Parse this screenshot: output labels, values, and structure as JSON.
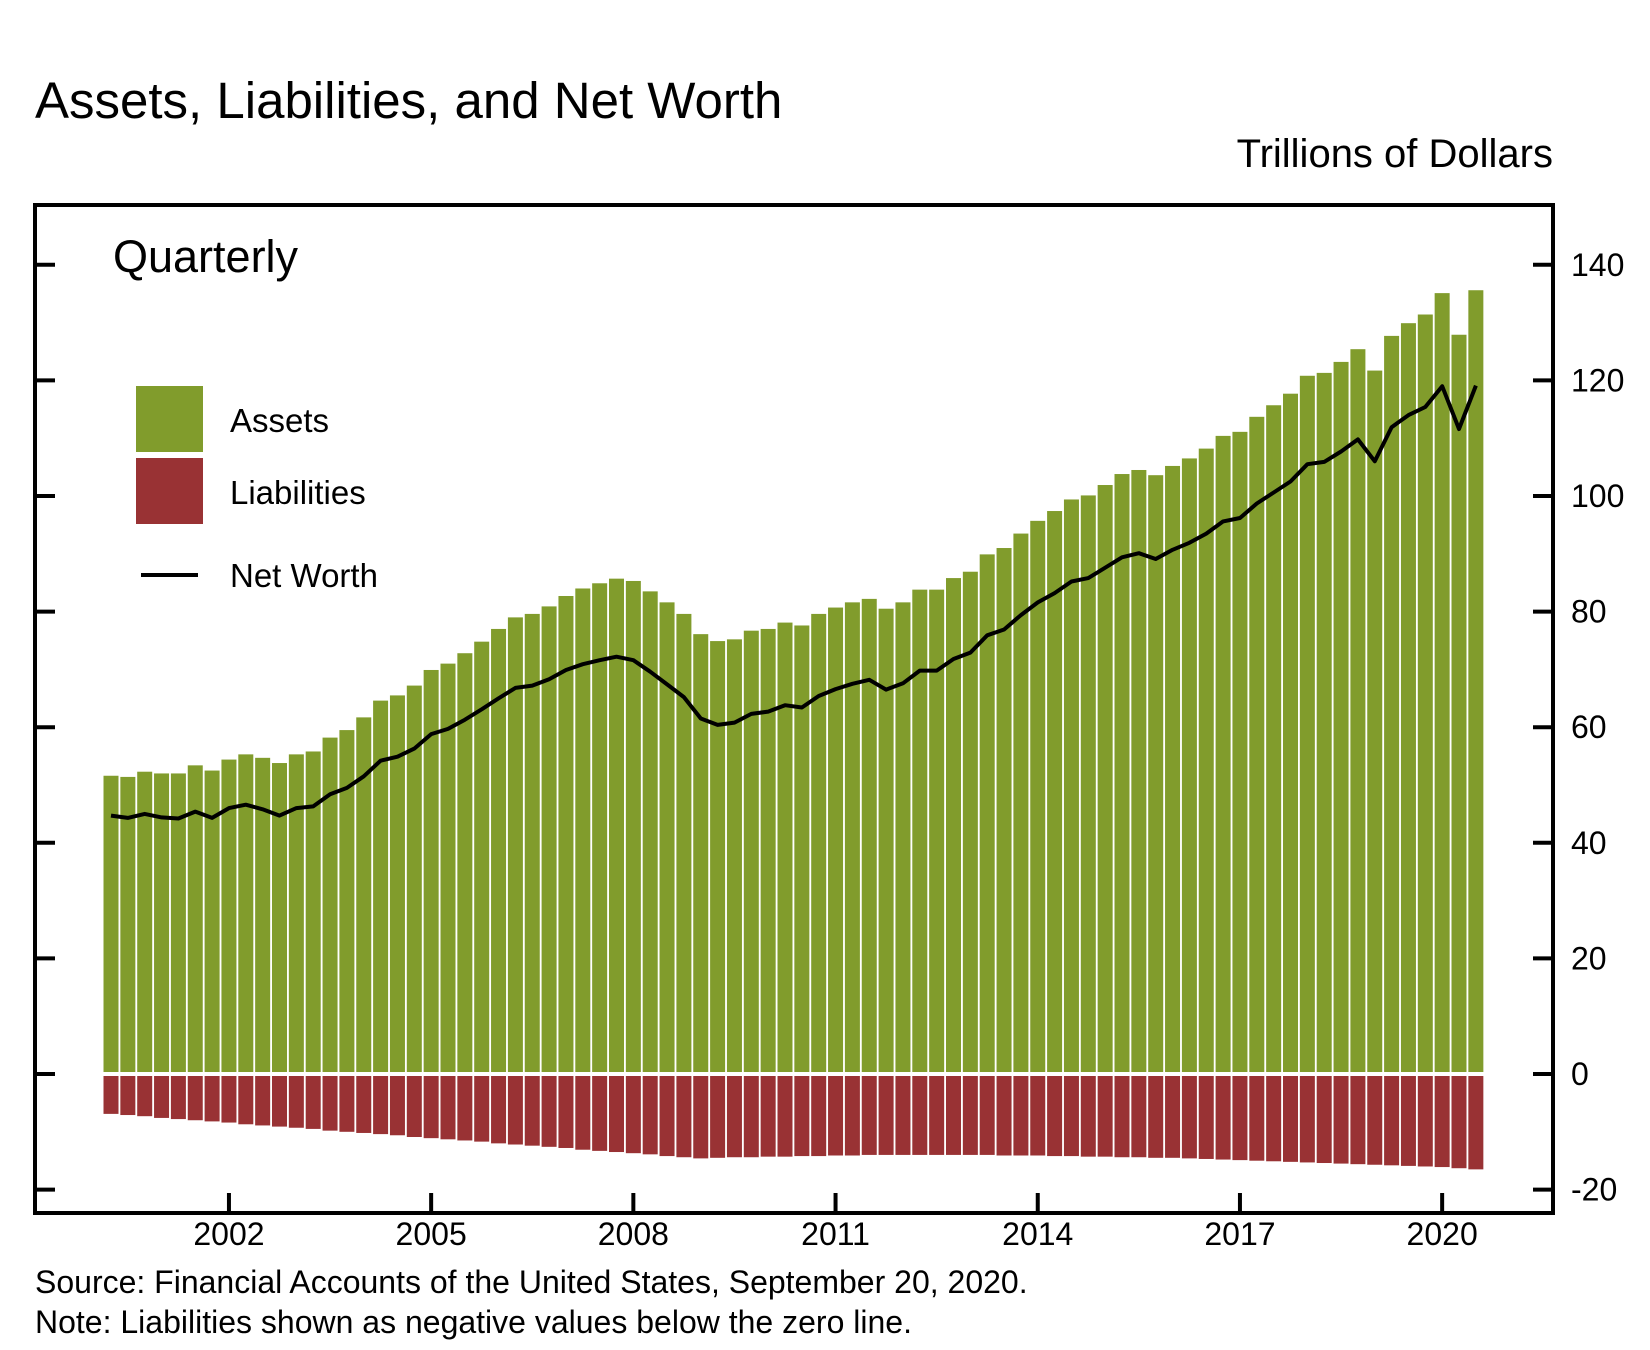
{
  "chart_data": {
    "type": "bar",
    "title": "Assets, Liabilities, and Net Worth",
    "units_label": "Trillions of Dollars",
    "frequency_label": "Quarterly",
    "xlabel": "",
    "ylabel": "Trillions of Dollars",
    "ylim": [
      -20,
      150
    ],
    "yticks": [
      -20,
      0,
      20,
      40,
      60,
      80,
      100,
      120,
      140
    ],
    "x_start": "2000Q1",
    "x_end": "2020Q2",
    "xtick_labels": [
      "2002",
      "2005",
      "2008",
      "2011",
      "2014",
      "2017",
      "2020"
    ],
    "legend_position": "top-left",
    "legend": [
      {
        "name": "Assets",
        "type": "bar"
      },
      {
        "name": "Liabilities",
        "type": "bar"
      },
      {
        "name": "Net Worth",
        "type": "line"
      }
    ],
    "series": [
      {
        "name": "Assets",
        "color": "#819c2c",
        "values": [
          51.6,
          51.4,
          52.3,
          52.0,
          52.0,
          53.4,
          52.5,
          54.4,
          55.3,
          54.7,
          53.8,
          55.3,
          55.8,
          58.2,
          59.5,
          61.7,
          64.6,
          65.5,
          67.2,
          69.9,
          71.0,
          72.8,
          74.8,
          77.0,
          79.0,
          79.6,
          80.9,
          82.7,
          84.0,
          84.9,
          85.7,
          85.3,
          83.5,
          81.6,
          79.6,
          76.1,
          74.9,
          75.2,
          76.7,
          77.0,
          78.1,
          77.6,
          79.6,
          80.7,
          81.6,
          82.2,
          80.5,
          81.6,
          83.8,
          83.8,
          85.8,
          86.9,
          89.9,
          91.0,
          93.5,
          95.7,
          97.4,
          99.4,
          100.1,
          101.9,
          103.8,
          104.5,
          103.6,
          105.2,
          106.5,
          108.2,
          110.4,
          111.1,
          113.7,
          115.7,
          117.7,
          120.8,
          121.3,
          123.2,
          125.4,
          121.7,
          127.7,
          129.9,
          131.4,
          135.1,
          127.9,
          135.6
        ]
      },
      {
        "name": "Liabilities",
        "color": "#993234",
        "values": [
          -6.9,
          -7.1,
          -7.3,
          -7.6,
          -7.8,
          -8.0,
          -8.2,
          -8.4,
          -8.7,
          -8.9,
          -9.1,
          -9.3,
          -9.5,
          -9.8,
          -10.0,
          -10.2,
          -10.4,
          -10.6,
          -10.9,
          -11.1,
          -11.3,
          -11.5,
          -11.7,
          -12.0,
          -12.2,
          -12.4,
          -12.6,
          -12.8,
          -13.1,
          -13.3,
          -13.5,
          -13.7,
          -13.9,
          -14.2,
          -14.4,
          -14.6,
          -14.5,
          -14.4,
          -14.4,
          -14.3,
          -14.3,
          -14.2,
          -14.2,
          -14.1,
          -14.1,
          -14.0,
          -14.0,
          -14.0,
          -14.0,
          -14.0,
          -14.0,
          -14.0,
          -14.0,
          -14.1,
          -14.1,
          -14.1,
          -14.2,
          -14.2,
          -14.3,
          -14.3,
          -14.4,
          -14.4,
          -14.5,
          -14.5,
          -14.6,
          -14.7,
          -14.8,
          -14.9,
          -15.0,
          -15.1,
          -15.2,
          -15.3,
          -15.4,
          -15.5,
          -15.6,
          -15.7,
          -15.8,
          -15.9,
          -16.0,
          -16.1,
          -16.3,
          -16.5
        ]
      },
      {
        "name": "Net Worth",
        "color": "#000000",
        "values": [
          44.7,
          44.3,
          45.0,
          44.4,
          44.2,
          45.4,
          44.3,
          46.0,
          46.6,
          45.8,
          44.7,
          46.0,
          46.3,
          48.4,
          49.5,
          51.5,
          54.2,
          54.9,
          56.3,
          58.8,
          59.7,
          61.3,
          63.1,
          65.0,
          66.8,
          67.2,
          68.3,
          69.9,
          70.9,
          71.6,
          72.2,
          71.6,
          69.6,
          67.4,
          65.2,
          61.5,
          60.4,
          60.8,
          62.3,
          62.7,
          63.8,
          63.4,
          65.4,
          66.6,
          67.5,
          68.2,
          66.5,
          67.6,
          69.8,
          69.8,
          71.8,
          72.9,
          75.9,
          76.9,
          79.4,
          81.6,
          83.2,
          85.2,
          85.8,
          87.6,
          89.4,
          90.1,
          89.1,
          90.7,
          91.9,
          93.5,
          95.6,
          96.2,
          98.7,
          100.6,
          102.5,
          105.5,
          105.9,
          107.7,
          109.8,
          106.0,
          111.9,
          114.0,
          115.4,
          119.0,
          111.6,
          119.1
        ]
      }
    ],
    "source": "Source: Financial Accounts of the United States, September 20, 2020.",
    "note": "Note: Liabilities shown as negative values below the zero line."
  }
}
